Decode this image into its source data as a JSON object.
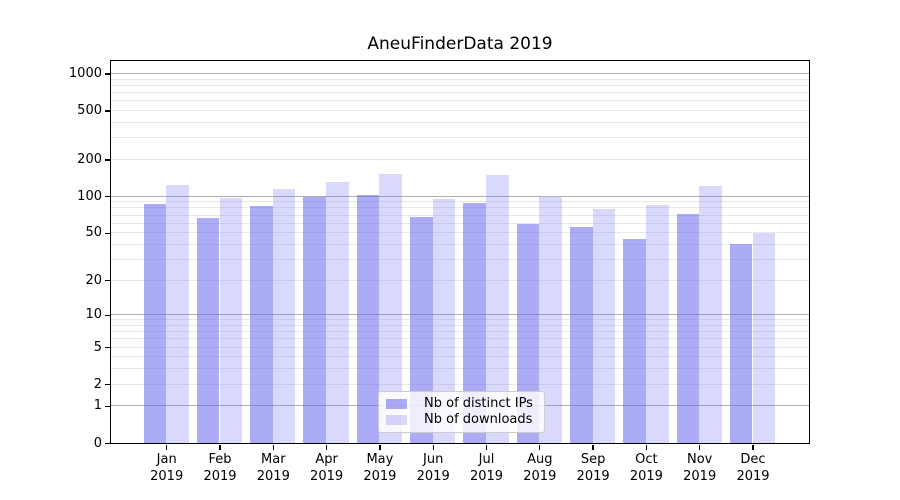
{
  "chart_data": {
    "type": "bar",
    "title": "AneuFinderData 2019",
    "categories": [
      "Jan",
      "Feb",
      "Mar",
      "Apr",
      "May",
      "Jun",
      "Jul",
      "Aug",
      "Sep",
      "Oct",
      "Nov",
      "Dec"
    ],
    "category_year": "2019",
    "x_tick_labels": [
      "Jan 2019",
      "Feb 2019",
      "Mar 2019",
      "Apr 2019",
      "May 2019",
      "Jun 2019",
      "Jul 2019",
      "Aug 2019",
      "Sep 2019",
      "Oct 2019",
      "Nov 2019",
      "Dec 2019"
    ],
    "series": [
      {
        "name": "Nb of distinct IPs",
        "values": [
          86,
          66,
          83,
          99,
          103,
          67,
          88,
          59,
          56,
          44,
          72,
          40
        ],
        "fill": "rgba(102,102,238,0.55)",
        "base_color": "#6666ee"
      },
      {
        "name": "Nb of downloads",
        "values": [
          124,
          96,
          115,
          131,
          151,
          95,
          148,
          98,
          78,
          84,
          121,
          50
        ],
        "fill": "rgba(102,102,238,0.25)",
        "base_color": "#6666ee"
      }
    ],
    "yscale": "log1p",
    "ylim": [
      0,
      1265
    ],
    "yticks": [
      0,
      1,
      2,
      5,
      10,
      20,
      50,
      100,
      200,
      500,
      1000
    ],
    "minor_gridlines": [
      2,
      3,
      4,
      5,
      6,
      7,
      8,
      9,
      20,
      30,
      40,
      50,
      60,
      70,
      80,
      90,
      200,
      300,
      400,
      500,
      600,
      700,
      800,
      900
    ],
    "major_gridlines": [
      1,
      10,
      100,
      1000
    ],
    "grid": true,
    "legend_position": "lower-center-inside"
  },
  "colors": {
    "major_grid": "#b0b0b0",
    "minor_grid": "#e9e9e9",
    "spine": "#000000",
    "background": "#ffffff",
    "text": "#000000"
  }
}
